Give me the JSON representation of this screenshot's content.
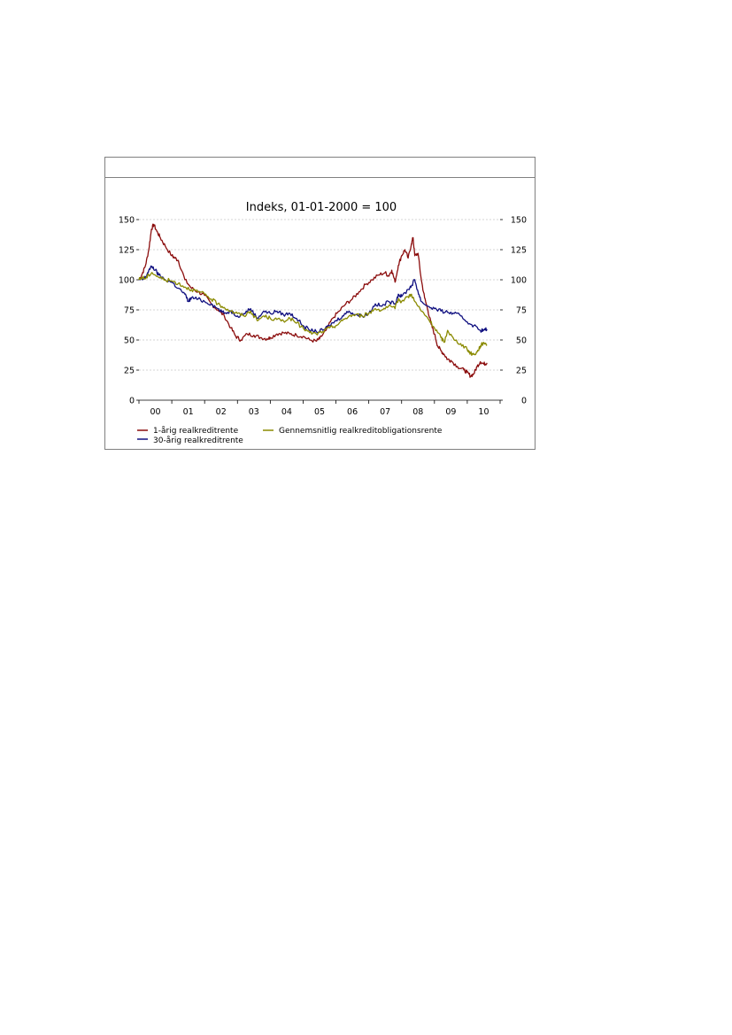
{
  "chart_data": {
    "type": "line",
    "title": "Indeks, 01-01-2000 = 100",
    "ylim": [
      0,
      150
    ],
    "yticks": [
      0,
      25,
      50,
      75,
      100,
      125,
      150
    ],
    "y_tick_labels": [
      "0",
      "25",
      "50",
      "75",
      "100",
      "125",
      "150"
    ],
    "dual_y_axis": true,
    "xlim": [
      2000.0,
      2011.0
    ],
    "x_tick_labels": [
      "00",
      "01",
      "02",
      "03",
      "04",
      "05",
      "06",
      "07",
      "08",
      "09",
      "10"
    ],
    "grid": "horizontal dashed",
    "legend_position": "bottom",
    "series": [
      {
        "name": "1-årig realkreditrente",
        "color": "#8b0d0d",
        "x": [
          2000.0,
          2000.1,
          2000.2,
          2000.3,
          2000.38,
          2000.45,
          2000.55,
          2000.65,
          2000.8,
          2001.0,
          2001.1,
          2001.2,
          2001.4,
          2001.6,
          2001.8,
          2002.0,
          2002.2,
          2002.4,
          2002.6,
          2002.8,
          2002.95,
          2003.1,
          2003.3,
          2003.5,
          2003.7,
          2003.9,
          2004.0,
          2004.2,
          2004.4,
          2004.6,
          2004.8,
          2005.0,
          2005.2,
          2005.4,
          2005.5,
          2005.7,
          2005.9,
          2006.1,
          2006.3,
          2006.5,
          2006.7,
          2006.9,
          2007.1,
          2007.3,
          2007.5,
          2007.6,
          2007.7,
          2007.8,
          2007.9,
          2008.0,
          2008.1,
          2008.2,
          2008.3,
          2008.35,
          2008.4,
          2008.5,
          2008.6,
          2008.7,
          2008.8,
          2008.9,
          2009.0,
          2009.1,
          2009.2,
          2009.3,
          2009.4,
          2009.5,
          2009.7,
          2009.9,
          2010.0,
          2010.1,
          2010.2,
          2010.3,
          2010.4,
          2010.5,
          2010.6
        ],
        "values": [
          100,
          105,
          112,
          125,
          142,
          146,
          140,
          135,
          128,
          120,
          118,
          116,
          100,
          93,
          90,
          87,
          80,
          75,
          70,
          60,
          53,
          50,
          55,
          54,
          52,
          51,
          52,
          55,
          56,
          55,
          54,
          53,
          50,
          49,
          51,
          58,
          68,
          74,
          80,
          84,
          90,
          96,
          100,
          104,
          106,
          103,
          108,
          98,
          112,
          120,
          125,
          118,
          130,
          135,
          120,
          122,
          100,
          85,
          75,
          63,
          55,
          45,
          41,
          38,
          34,
          33,
          28,
          25,
          23,
          20,
          22,
          28,
          32,
          30,
          31
        ]
      },
      {
        "name": "30-årig realkreditrente",
        "color": "#101080",
        "x": [
          2000.0,
          2000.1,
          2000.2,
          2000.3,
          2000.4,
          2000.5,
          2000.6,
          2000.8,
          2001.0,
          2001.2,
          2001.4,
          2001.5,
          2001.6,
          2001.8,
          2002.0,
          2002.2,
          2002.4,
          2002.6,
          2002.8,
          2003.0,
          2003.2,
          2003.4,
          2003.6,
          2003.8,
          2004.0,
          2004.2,
          2004.4,
          2004.6,
          2004.8,
          2005.0,
          2005.2,
          2005.4,
          2005.6,
          2005.8,
          2006.0,
          2006.2,
          2006.4,
          2006.6,
          2006.8,
          2007.0,
          2007.2,
          2007.4,
          2007.6,
          2007.8,
          2007.9,
          2008.0,
          2008.2,
          2008.3,
          2008.4,
          2008.5,
          2008.6,
          2008.8,
          2009.0,
          2009.2,
          2009.4,
          2009.6,
          2009.8,
          2010.0,
          2010.2,
          2010.4,
          2010.5,
          2010.6
        ],
        "values": [
          100,
          100,
          102,
          108,
          111,
          108,
          104,
          100,
          98,
          93,
          88,
          82,
          85,
          84,
          82,
          80,
          76,
          72,
          74,
          70,
          72,
          76,
          68,
          74,
          72,
          74,
          71,
          72,
          68,
          62,
          58,
          57,
          58,
          62,
          66,
          70,
          74,
          71,
          70,
          72,
          80,
          78,
          82,
          80,
          88,
          86,
          92,
          95,
          100,
          90,
          82,
          78,
          76,
          74,
          73,
          72,
          70,
          65,
          62,
          58,
          58,
          59
        ]
      },
      {
        "name": "Gennemsnitlig realkreditobligationsrente",
        "color": "#8a8a00",
        "x": [
          2000.0,
          2000.1,
          2000.2,
          2000.3,
          2000.4,
          2000.6,
          2000.8,
          2001.0,
          2001.2,
          2001.4,
          2001.6,
          2001.8,
          2002.0,
          2002.2,
          2002.4,
          2002.6,
          2002.8,
          2003.0,
          2003.2,
          2003.4,
          2003.6,
          2003.8,
          2004.0,
          2004.2,
          2004.4,
          2004.6,
          2004.8,
          2005.0,
          2005.2,
          2005.4,
          2005.6,
          2005.8,
          2006.0,
          2006.2,
          2006.4,
          2006.6,
          2006.8,
          2007.0,
          2007.2,
          2007.4,
          2007.6,
          2007.8,
          2007.9,
          2008.0,
          2008.2,
          2008.3,
          2008.4,
          2008.6,
          2008.8,
          2009.0,
          2009.2,
          2009.3,
          2009.4,
          2009.6,
          2009.8,
          2010.0,
          2010.1,
          2010.2,
          2010.3,
          2010.4,
          2010.5,
          2010.6
        ],
        "values": [
          100,
          102,
          101,
          104,
          106,
          102,
          100,
          99,
          97,
          94,
          92,
          90,
          88,
          84,
          80,
          77,
          74,
          72,
          70,
          74,
          66,
          70,
          68,
          67,
          66,
          68,
          64,
          60,
          56,
          55,
          57,
          60,
          62,
          66,
          70,
          71,
          70,
          72,
          76,
          75,
          78,
          76,
          84,
          82,
          86,
          88,
          82,
          74,
          68,
          60,
          52,
          48,
          58,
          50,
          47,
          42,
          39,
          38,
          40,
          45,
          48,
          46
        ]
      }
    ]
  }
}
